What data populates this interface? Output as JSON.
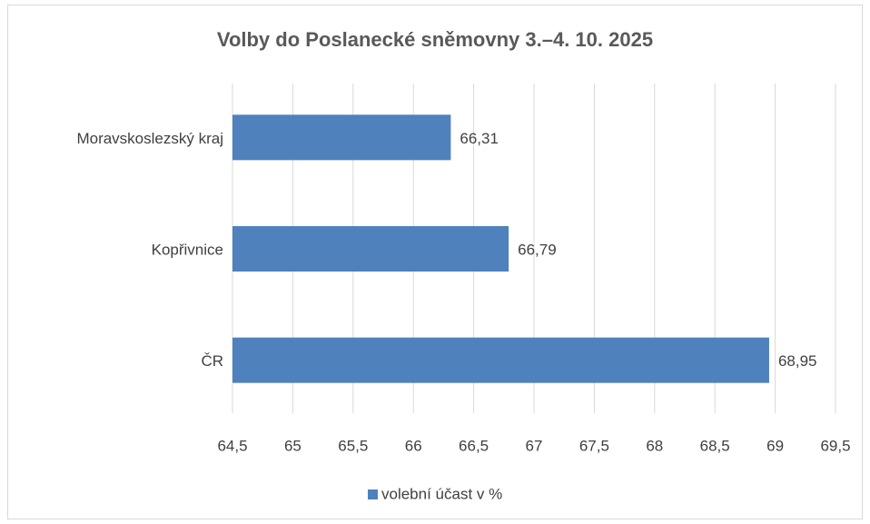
{
  "chart_data": {
    "type": "bar",
    "orientation": "horizontal",
    "title": "Volby do Poslanecké sněmovny 3.–4. 10. 2025",
    "categories": [
      "Moravskoslezský kraj",
      "Kopřivnice",
      "ČR"
    ],
    "series": [
      {
        "name": "volební účast v %",
        "color": "#4f81bd",
        "values": [
          66.31,
          66.79,
          68.95
        ],
        "value_labels": [
          "66,31",
          "66,79",
          "68,95"
        ]
      }
    ],
    "xlim": [
      64.5,
      69.5
    ],
    "xticks": [
      {
        "value": 64.5,
        "label": "64,5"
      },
      65,
      {
        "value": 65.5,
        "label": "65,5"
      },
      66,
      {
        "value": 66.5,
        "label": "66,5"
      },
      67,
      {
        "value": 67.5,
        "label": "67,5"
      },
      68,
      {
        "value": 68.5,
        "label": "68,5"
      },
      69,
      {
        "value": 69.5,
        "label": "69,5"
      }
    ],
    "grid": true,
    "legend": "bottom"
  }
}
